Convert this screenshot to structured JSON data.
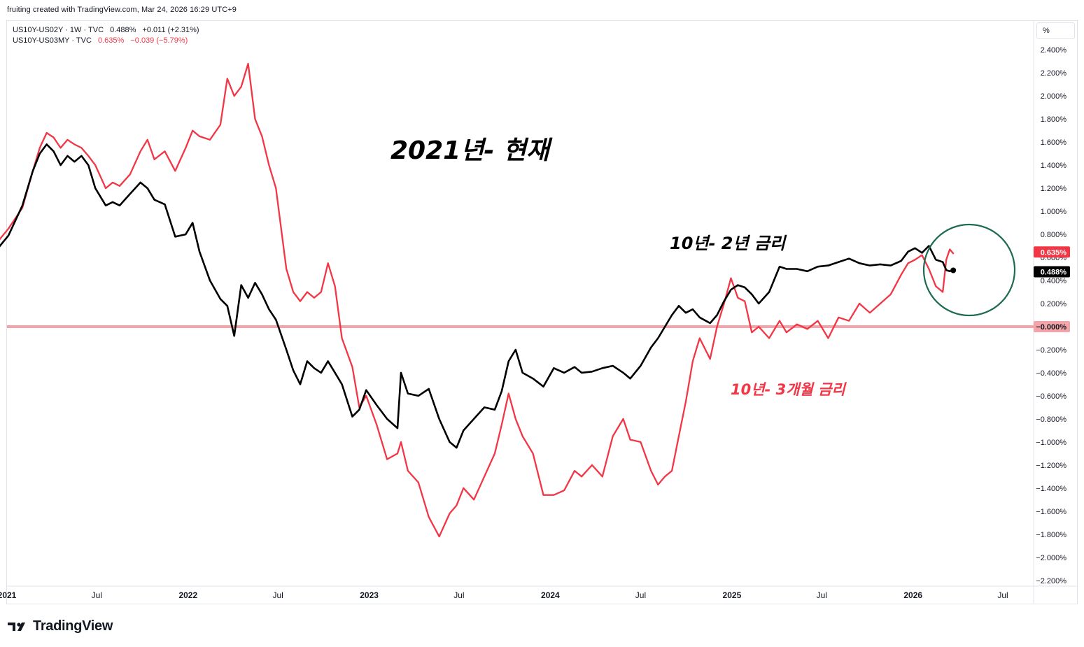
{
  "header": {
    "attribution": "fruiting created with TradingView.com, Mar 24, 2026 16:29 UTC+9"
  },
  "legend": {
    "series1": {
      "symbol": "US10Y-US02Y · 1W · TVC",
      "value": "0.488%",
      "change": "+0.011 (+2.31%)",
      "color": "#000000"
    },
    "series2": {
      "symbol": "US10Y-US03MY · TVC",
      "value": "0.635%",
      "change": "−0.039 (−5.79%)",
      "color": "#f23645"
    }
  },
  "scale_button": "%",
  "annotations": {
    "title": "2021년- 현재",
    "label_10y2y": "10년- 2년 금리",
    "label_10y3m": "10년- 3개월 금리"
  },
  "price_labels": {
    "red": "0.635%",
    "black": "0.488%",
    "zero": "−0.000%"
  },
  "footer": {
    "brand": "TradingView"
  },
  "chart_data": {
    "type": "line",
    "x_unit": "date",
    "xlim": [
      "2021-01-01",
      "2026-09-01"
    ],
    "ylim": [
      -2.25,
      2.65
    ],
    "y_ticks": [
      "2.400%",
      "2.200%",
      "2.000%",
      "1.800%",
      "1.600%",
      "1.400%",
      "1.200%",
      "1.000%",
      "0.800%",
      "0.600%",
      "0.400%",
      "0.200%",
      "−0.200%",
      "−0.400%",
      "−0.600%",
      "−0.800%",
      "−1.000%",
      "−1.200%",
      "−1.400%",
      "−1.600%",
      "−1.800%",
      "−2.000%",
      "−2.200%"
    ],
    "y_tick_values": [
      2.4,
      2.2,
      2.0,
      1.8,
      1.6,
      1.4,
      1.2,
      1.0,
      0.8,
      0.6,
      0.4,
      0.2,
      -0.2,
      -0.4,
      -0.6,
      -0.8,
      -1.0,
      -1.2,
      -1.4,
      -1.6,
      -1.8,
      -2.0,
      -2.2
    ],
    "x_ticks": [
      {
        "date": "2021-01-01",
        "label": "2021",
        "bold": true
      },
      {
        "date": "2021-07-01",
        "label": "Jul",
        "bold": false
      },
      {
        "date": "2022-01-01",
        "label": "2022",
        "bold": true
      },
      {
        "date": "2022-07-01",
        "label": "Jul",
        "bold": false
      },
      {
        "date": "2023-01-01",
        "label": "2023",
        "bold": true
      },
      {
        "date": "2023-07-01",
        "label": "Jul",
        "bold": false
      },
      {
        "date": "2024-01-01",
        "label": "2024",
        "bold": true
      },
      {
        "date": "2024-07-01",
        "label": "Jul",
        "bold": false
      },
      {
        "date": "2025-01-01",
        "label": "2025",
        "bold": true
      },
      {
        "date": "2025-07-01",
        "label": "Jul",
        "bold": false
      },
      {
        "date": "2026-01-01",
        "label": "2026",
        "bold": true
      },
      {
        "date": "2026-07-01",
        "label": "Jul",
        "bold": false
      }
    ],
    "horizontal_line": {
      "y": 0.0,
      "color": "#f4a3a8"
    },
    "series": [
      {
        "name": "US10Y-US02Y",
        "color": "#000000",
        "points": [
          [
            "2020-12-14",
            0.68
          ],
          [
            "2021-01-04",
            0.79
          ],
          [
            "2021-02-01",
            1.05
          ],
          [
            "2021-02-22",
            1.35
          ],
          [
            "2021-03-08",
            1.5
          ],
          [
            "2021-03-22",
            1.58
          ],
          [
            "2021-04-05",
            1.52
          ],
          [
            "2021-04-19",
            1.4
          ],
          [
            "2021-05-03",
            1.48
          ],
          [
            "2021-05-17",
            1.43
          ],
          [
            "2021-05-31",
            1.48
          ],
          [
            "2021-06-14",
            1.4
          ],
          [
            "2021-06-28",
            1.2
          ],
          [
            "2021-07-19",
            1.05
          ],
          [
            "2021-08-02",
            1.08
          ],
          [
            "2021-08-16",
            1.05
          ],
          [
            "2021-09-06",
            1.15
          ],
          [
            "2021-09-27",
            1.25
          ],
          [
            "2021-10-11",
            1.2
          ],
          [
            "2021-10-25",
            1.1
          ],
          [
            "2021-11-15",
            1.06
          ],
          [
            "2021-12-06",
            0.78
          ],
          [
            "2021-12-27",
            0.8
          ],
          [
            "2022-01-10",
            0.9
          ],
          [
            "2022-01-24",
            0.65
          ],
          [
            "2022-02-14",
            0.4
          ],
          [
            "2022-03-07",
            0.24
          ],
          [
            "2022-03-21",
            0.18
          ],
          [
            "2022-04-04",
            -0.08
          ],
          [
            "2022-04-18",
            0.36
          ],
          [
            "2022-05-02",
            0.25
          ],
          [
            "2022-05-16",
            0.38
          ],
          [
            "2022-05-30",
            0.28
          ],
          [
            "2022-06-13",
            0.15
          ],
          [
            "2022-06-27",
            0.06
          ],
          [
            "2022-07-18",
            -0.2
          ],
          [
            "2022-08-01",
            -0.38
          ],
          [
            "2022-08-15",
            -0.5
          ],
          [
            "2022-08-29",
            -0.3
          ],
          [
            "2022-09-12",
            -0.36
          ],
          [
            "2022-09-26",
            -0.4
          ],
          [
            "2022-10-10",
            -0.3
          ],
          [
            "2022-10-24",
            -0.4
          ],
          [
            "2022-11-07",
            -0.5
          ],
          [
            "2022-11-28",
            -0.78
          ],
          [
            "2022-12-12",
            -0.72
          ],
          [
            "2022-12-26",
            -0.55
          ],
          [
            "2023-01-16",
            -0.68
          ],
          [
            "2023-02-06",
            -0.8
          ],
          [
            "2023-02-27",
            -0.88
          ],
          [
            "2023-03-06",
            -0.4
          ],
          [
            "2023-03-20",
            -0.58
          ],
          [
            "2023-04-10",
            -0.6
          ],
          [
            "2023-05-01",
            -0.54
          ],
          [
            "2023-05-22",
            -0.8
          ],
          [
            "2023-06-12",
            -1.0
          ],
          [
            "2023-06-26",
            -1.05
          ],
          [
            "2023-07-10",
            -0.9
          ],
          [
            "2023-07-31",
            -0.8
          ],
          [
            "2023-08-21",
            -0.7
          ],
          [
            "2023-09-11",
            -0.72
          ],
          [
            "2023-09-25",
            -0.56
          ],
          [
            "2023-10-09",
            -0.3
          ],
          [
            "2023-10-23",
            -0.2
          ],
          [
            "2023-11-06",
            -0.4
          ],
          [
            "2023-11-27",
            -0.45
          ],
          [
            "2023-12-18",
            -0.52
          ],
          [
            "2024-01-08",
            -0.36
          ],
          [
            "2024-01-29",
            -0.4
          ],
          [
            "2024-02-19",
            -0.35
          ],
          [
            "2024-03-04",
            -0.4
          ],
          [
            "2024-03-25",
            -0.39
          ],
          [
            "2024-04-15",
            -0.36
          ],
          [
            "2024-05-06",
            -0.34
          ],
          [
            "2024-05-27",
            -0.4
          ],
          [
            "2024-06-10",
            -0.45
          ],
          [
            "2024-07-01",
            -0.34
          ],
          [
            "2024-07-22",
            -0.18
          ],
          [
            "2024-08-05",
            -0.1
          ],
          [
            "2024-08-19",
            0.0
          ],
          [
            "2024-09-02",
            0.1
          ],
          [
            "2024-09-16",
            0.18
          ],
          [
            "2024-09-30",
            0.12
          ],
          [
            "2024-10-14",
            0.15
          ],
          [
            "2024-10-28",
            0.08
          ],
          [
            "2024-11-18",
            0.03
          ],
          [
            "2024-12-02",
            0.1
          ],
          [
            "2024-12-16",
            0.22
          ],
          [
            "2024-12-30",
            0.32
          ],
          [
            "2025-01-13",
            0.36
          ],
          [
            "2025-01-27",
            0.34
          ],
          [
            "2025-02-10",
            0.28
          ],
          [
            "2025-02-24",
            0.2
          ],
          [
            "2025-03-17",
            0.3
          ],
          [
            "2025-04-07",
            0.52
          ],
          [
            "2025-04-21",
            0.5
          ],
          [
            "2025-05-12",
            0.5
          ],
          [
            "2025-06-02",
            0.48
          ],
          [
            "2025-06-23",
            0.52
          ],
          [
            "2025-07-14",
            0.53
          ],
          [
            "2025-08-04",
            0.56
          ],
          [
            "2025-08-25",
            0.59
          ],
          [
            "2025-09-15",
            0.55
          ],
          [
            "2025-10-06",
            0.53
          ],
          [
            "2025-10-27",
            0.54
          ],
          [
            "2025-11-17",
            0.53
          ],
          [
            "2025-12-08",
            0.57
          ],
          [
            "2025-12-22",
            0.65
          ],
          [
            "2026-01-05",
            0.68
          ],
          [
            "2026-01-19",
            0.64
          ],
          [
            "2026-02-02",
            0.7
          ],
          [
            "2026-02-16",
            0.58
          ],
          [
            "2026-03-02",
            0.56
          ],
          [
            "2026-03-09",
            0.49
          ],
          [
            "2026-03-16",
            0.48
          ],
          [
            "2026-03-23",
            0.488
          ]
        ]
      },
      {
        "name": "US10Y-US03MY",
        "color": "#f23645",
        "points": [
          [
            "2020-12-14",
            0.74
          ],
          [
            "2021-01-04",
            0.85
          ],
          [
            "2021-02-01",
            1.03
          ],
          [
            "2021-02-22",
            1.35
          ],
          [
            "2021-03-08",
            1.55
          ],
          [
            "2021-03-22",
            1.68
          ],
          [
            "2021-04-05",
            1.64
          ],
          [
            "2021-04-19",
            1.55
          ],
          [
            "2021-05-03",
            1.62
          ],
          [
            "2021-05-17",
            1.58
          ],
          [
            "2021-05-31",
            1.55
          ],
          [
            "2021-06-14",
            1.48
          ],
          [
            "2021-06-28",
            1.4
          ],
          [
            "2021-07-19",
            1.2
          ],
          [
            "2021-08-02",
            1.25
          ],
          [
            "2021-08-16",
            1.22
          ],
          [
            "2021-09-06",
            1.32
          ],
          [
            "2021-09-27",
            1.52
          ],
          [
            "2021-10-11",
            1.62
          ],
          [
            "2021-10-25",
            1.45
          ],
          [
            "2021-11-15",
            1.52
          ],
          [
            "2021-12-06",
            1.35
          ],
          [
            "2021-12-27",
            1.55
          ],
          [
            "2022-01-10",
            1.7
          ],
          [
            "2022-01-24",
            1.65
          ],
          [
            "2022-02-14",
            1.62
          ],
          [
            "2022-03-07",
            1.75
          ],
          [
            "2022-03-21",
            2.15
          ],
          [
            "2022-04-04",
            2.0
          ],
          [
            "2022-04-18",
            2.08
          ],
          [
            "2022-05-02",
            2.28
          ],
          [
            "2022-05-16",
            1.8
          ],
          [
            "2022-05-30",
            1.65
          ],
          [
            "2022-06-13",
            1.4
          ],
          [
            "2022-06-27",
            1.2
          ],
          [
            "2022-07-18",
            0.5
          ],
          [
            "2022-08-01",
            0.3
          ],
          [
            "2022-08-15",
            0.22
          ],
          [
            "2022-08-29",
            0.3
          ],
          [
            "2022-09-12",
            0.25
          ],
          [
            "2022-09-26",
            0.3
          ],
          [
            "2022-10-10",
            0.55
          ],
          [
            "2022-10-24",
            0.35
          ],
          [
            "2022-11-07",
            -0.1
          ],
          [
            "2022-11-28",
            -0.35
          ],
          [
            "2022-12-12",
            -0.7
          ],
          [
            "2022-12-26",
            -0.6
          ],
          [
            "2023-01-16",
            -0.85
          ],
          [
            "2023-02-06",
            -1.15
          ],
          [
            "2023-02-27",
            -1.1
          ],
          [
            "2023-03-06",
            -1.0
          ],
          [
            "2023-03-20",
            -1.25
          ],
          [
            "2023-04-10",
            -1.35
          ],
          [
            "2023-05-01",
            -1.65
          ],
          [
            "2023-05-22",
            -1.82
          ],
          [
            "2023-06-12",
            -1.62
          ],
          [
            "2023-06-26",
            -1.55
          ],
          [
            "2023-07-10",
            -1.4
          ],
          [
            "2023-07-31",
            -1.5
          ],
          [
            "2023-08-21",
            -1.3
          ],
          [
            "2023-09-11",
            -1.1
          ],
          [
            "2023-09-25",
            -0.85
          ],
          [
            "2023-10-09",
            -0.58
          ],
          [
            "2023-10-23",
            -0.8
          ],
          [
            "2023-11-06",
            -0.95
          ],
          [
            "2023-11-27",
            -1.1
          ],
          [
            "2023-12-18",
            -1.46
          ],
          [
            "2024-01-08",
            -1.46
          ],
          [
            "2024-01-29",
            -1.42
          ],
          [
            "2024-02-19",
            -1.25
          ],
          [
            "2024-03-04",
            -1.3
          ],
          [
            "2024-03-25",
            -1.2
          ],
          [
            "2024-04-15",
            -1.3
          ],
          [
            "2024-05-06",
            -0.95
          ],
          [
            "2024-05-27",
            -0.8
          ],
          [
            "2024-06-10",
            -0.98
          ],
          [
            "2024-07-01",
            -1.0
          ],
          [
            "2024-07-22",
            -1.25
          ],
          [
            "2024-08-05",
            -1.37
          ],
          [
            "2024-08-19",
            -1.3
          ],
          [
            "2024-09-02",
            -1.25
          ],
          [
            "2024-09-16",
            -0.95
          ],
          [
            "2024-09-30",
            -0.65
          ],
          [
            "2024-10-14",
            -0.3
          ],
          [
            "2024-10-28",
            -0.1
          ],
          [
            "2024-11-18",
            -0.28
          ],
          [
            "2024-12-02",
            0.0
          ],
          [
            "2024-12-16",
            0.2
          ],
          [
            "2024-12-30",
            0.42
          ],
          [
            "2025-01-13",
            0.25
          ],
          [
            "2025-01-27",
            0.22
          ],
          [
            "2025-02-10",
            -0.05
          ],
          [
            "2025-02-24",
            0.0
          ],
          [
            "2025-03-17",
            -0.1
          ],
          [
            "2025-04-07",
            0.05
          ],
          [
            "2025-04-21",
            -0.05
          ],
          [
            "2025-05-12",
            0.02
          ],
          [
            "2025-06-02",
            -0.02
          ],
          [
            "2025-06-23",
            0.05
          ],
          [
            "2025-07-14",
            -0.1
          ],
          [
            "2025-08-04",
            0.08
          ],
          [
            "2025-08-25",
            0.05
          ],
          [
            "2025-09-15",
            0.2
          ],
          [
            "2025-10-06",
            0.12
          ],
          [
            "2025-10-27",
            0.2
          ],
          [
            "2025-11-17",
            0.28
          ],
          [
            "2025-12-08",
            0.45
          ],
          [
            "2025-12-22",
            0.55
          ],
          [
            "2026-01-05",
            0.58
          ],
          [
            "2026-01-19",
            0.62
          ],
          [
            "2026-02-02",
            0.5
          ],
          [
            "2026-02-16",
            0.35
          ],
          [
            "2026-03-02",
            0.3
          ],
          [
            "2026-03-09",
            0.58
          ],
          [
            "2026-03-16",
            0.67
          ],
          [
            "2026-03-23",
            0.635
          ]
        ]
      }
    ]
  }
}
